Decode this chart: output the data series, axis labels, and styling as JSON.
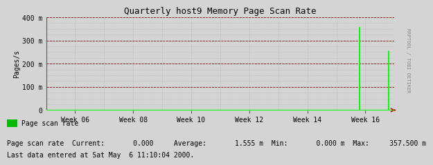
{
  "title": "Quarterly host9 Memory Page Scan Rate",
  "ylabel": "Pages/s",
  "background_color": "#d4d4d4",
  "plot_bg_color": "#d4d4d4",
  "grid_color_major_h": "#880000",
  "grid_color_minor": "#aaaaaa",
  "line_color": "#00ff00",
  "arrow_color": "#cc0000",
  "title_color": "#000000",
  "text_color": "#000000",
  "watermark_color": "#888888",
  "yticks": [
    0,
    100,
    200,
    300,
    400
  ],
  "ytick_labels": [
    "0",
    "100 m",
    "200 m",
    "300 m",
    "400 m"
  ],
  "ylim": [
    0,
    400
  ],
  "week_start": 5,
  "week_end": 17,
  "xtick_weeks": [
    6,
    8,
    10,
    12,
    14,
    16
  ],
  "xtick_labels": [
    "Week 06",
    "Week 08",
    "Week 10",
    "Week 12",
    "Week 14",
    "Week 16"
  ],
  "legend_label": "Page scan rate",
  "legend_color": "#00bb00",
  "stats_line": "Page scan rate  Current:       0.000     Average:       1.555 m  Min:       0.000 m  Max:     357.500 m",
  "last_data_line": "Last data entered at Sat May  6 11:10:04 2000.",
  "watermark": "RRPTOOL / TOBI OETIKER",
  "spike1_week": 15.8,
  "spike1_y": 357.5,
  "spike2_week": 16.8,
  "spike2_y": 255.0,
  "font_family": "monospace",
  "title_fontsize": 9,
  "tick_fontsize": 7,
  "label_fontsize": 7,
  "stats_fontsize": 7,
  "watermark_fontsize": 5
}
